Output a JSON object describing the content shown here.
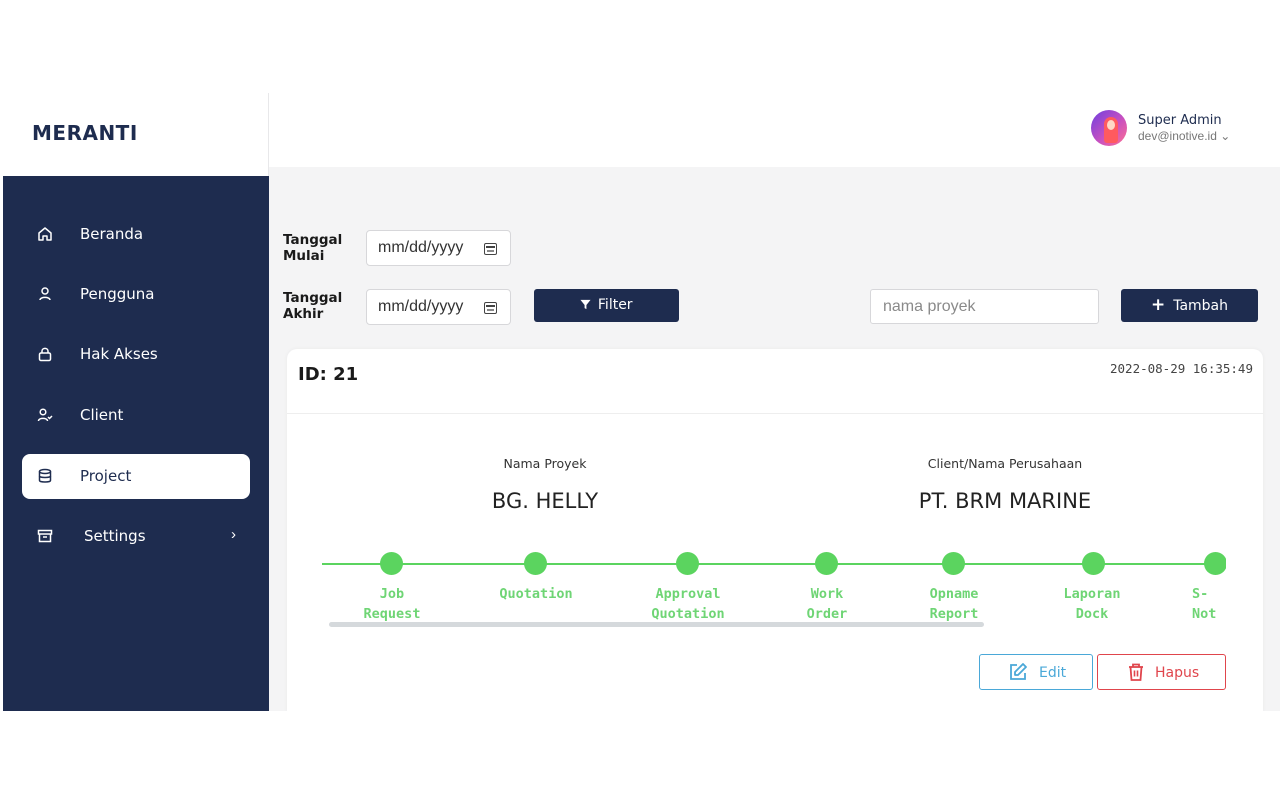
{
  "sidebar": {
    "brand": "MERANTI",
    "items": [
      {
        "label": "Beranda",
        "icon": "home-icon"
      },
      {
        "label": "Pengguna",
        "icon": "user-icon"
      },
      {
        "label": "Hak Akses",
        "icon": "lock-icon"
      },
      {
        "label": "Client",
        "icon": "user-check-icon"
      },
      {
        "label": "Project",
        "icon": "database-icon",
        "active": true
      },
      {
        "label": "Settings",
        "icon": "archive-icon",
        "chevron": "›"
      }
    ]
  },
  "header": {
    "user_name": "Super Admin",
    "user_email": "dev@inotive.id ⌄"
  },
  "filters": {
    "start_label_1": "Tanggal",
    "start_label_2": "Mulai",
    "end_label_1": "Tanggal",
    "end_label_2": "Akhir",
    "date_placeholder": "mm/dd/yyyy",
    "filter_button": "Filter",
    "search_placeholder": "nama proyek",
    "add_button": "Tambah"
  },
  "card": {
    "id": "ID: 21",
    "timestamp": "2022-08-29 16:35:49",
    "project_caption": "Nama Proyek",
    "project_name": "BG. HELLY",
    "client_caption": "Client/Nama Perusahaan",
    "client_name": "PT. BRM MARINE",
    "steps": [
      "Job\nRequest",
      "Quotation",
      "Approval\nQuotation",
      "Work\nOrder",
      "Opname\nReport",
      "Laporan\nDock",
      "S-\nNot"
    ],
    "edit_button": "Edit",
    "delete_button": "Hapus"
  },
  "colors": {
    "sidebar": "#1e2c4f",
    "accent_green": "#5bd45f",
    "edit": "#4aa8d8",
    "delete": "#e0454c"
  }
}
